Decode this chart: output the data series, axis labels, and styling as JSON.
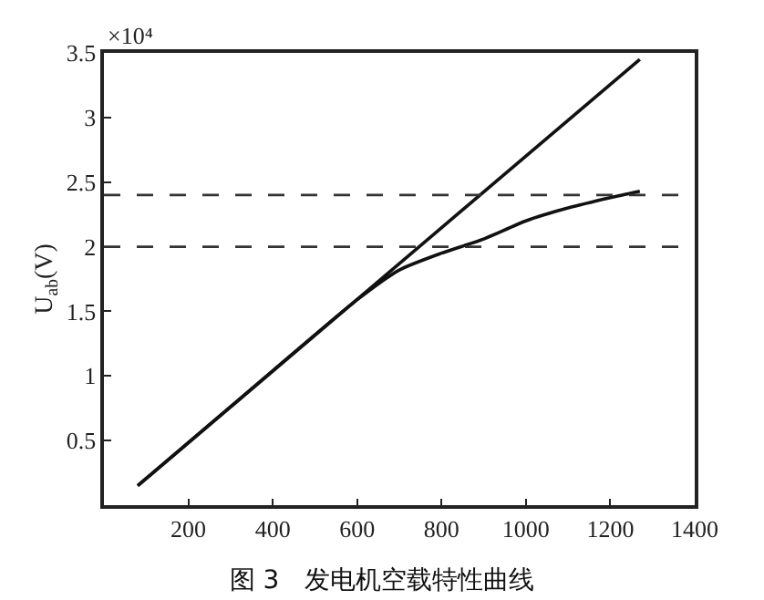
{
  "chart_data": {
    "type": "line",
    "title": "图 3　发电机空载特性曲线",
    "ylabel": "U$_{ab}$(V)",
    "annotations": [
      "×10⁴"
    ],
    "series": [
      {
        "color": "#111111",
        "x": [
          80,
          1270
        ],
        "values": [
          0.15,
          3.45
        ]
      },
      {
        "color": "#111111",
        "x": [
          80,
          400,
          600,
          700,
          800,
          900,
          1000,
          1100,
          1200,
          1270
        ],
        "values": [
          0.15,
          1.04,
          1.59,
          1.82,
          1.95,
          2.06,
          2.2,
          2.3,
          2.38,
          2.43
        ]
      }
    ],
    "ref_lines": [
      {
        "axis": "y",
        "value": 2.4,
        "color": "#333333",
        "line_style": "dashed"
      },
      {
        "axis": "y",
        "value": 2.0,
        "color": "#333333",
        "line_style": "dashed"
      }
    ],
    "xlim": [
      0,
      1400
    ],
    "xticks": [
      200,
      400,
      600,
      800,
      1000,
      1200,
      1400
    ],
    "ylim": [
      0,
      3.5
    ],
    "yticks": [
      0.5,
      1,
      1.5,
      2,
      2.5,
      3,
      3.5
    ],
    "marker": "none",
    "line_style": "solid"
  }
}
